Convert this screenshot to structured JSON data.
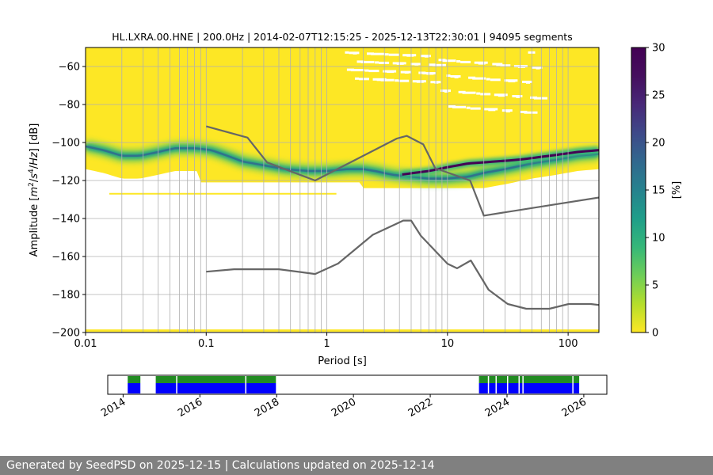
{
  "chart_data": [
    {
      "type": "heatmap",
      "title": "HL.LXRA.00.HNE | 200.0Hz | 2014-02-07T12:15:25 - 2025-12-13T22:30:01 | 94095 segments",
      "xlabel": "Period [s]",
      "ylabel_parts": [
        "Amplitude [",
        "m",
        "2",
        "/",
        "s",
        "4",
        "/",
        "Hz",
        "] [dB]"
      ],
      "x_scale": "log",
      "xlim": [
        0.01,
        180
      ],
      "ylim": [
        -200,
        -50
      ],
      "x_ticks": [
        {
          "value": 0.01,
          "label": "0.01"
        },
        {
          "value": 0.1,
          "label": "0.1"
        },
        {
          "value": 1,
          "label": "1"
        },
        {
          "value": 10,
          "label": "10"
        },
        {
          "value": 100,
          "label": "100"
        }
      ],
      "y_ticks": [
        {
          "value": -60,
          "label": "−60"
        },
        {
          "value": -80,
          "label": "−80"
        },
        {
          "value": -100,
          "label": "−100"
        },
        {
          "value": -120,
          "label": "−120"
        },
        {
          "value": -140,
          "label": "−140"
        },
        {
          "value": -160,
          "label": "−160"
        },
        {
          "value": -180,
          "label": "−180"
        },
        {
          "value": -200,
          "label": "−200"
        }
      ],
      "grid": true,
      "grid_periods": [
        0.02,
        0.03,
        0.04,
        0.05,
        0.06,
        0.07,
        0.08,
        0.09,
        0.2,
        0.3,
        0.4,
        0.5,
        0.6,
        0.7,
        0.8,
        0.9,
        2,
        3,
        4,
        5,
        6,
        7,
        8,
        9,
        20,
        30,
        40,
        50,
        60,
        70,
        80,
        90
      ],
      "ppsd_mode": [
        [
          0.01,
          -102
        ],
        [
          0.014,
          -104
        ],
        [
          0.02,
          -107
        ],
        [
          0.028,
          -107
        ],
        [
          0.04,
          -105
        ],
        [
          0.055,
          -103
        ],
        [
          0.08,
          -103
        ],
        [
          0.11,
          -104
        ],
        [
          0.15,
          -107
        ],
        [
          0.2,
          -110
        ],
        [
          0.3,
          -112
        ],
        [
          0.45,
          -114
        ],
        [
          0.7,
          -115
        ],
        [
          1.0,
          -115
        ],
        [
          1.5,
          -114
        ],
        [
          2.0,
          -114
        ],
        [
          2.5,
          -115
        ],
        [
          3.5,
          -117
        ],
        [
          5,
          -118
        ],
        [
          7,
          -119
        ],
        [
          10,
          -119
        ],
        [
          15,
          -118
        ],
        [
          20,
          -116
        ],
        [
          30,
          -114
        ],
        [
          50,
          -111
        ],
        [
          80,
          -109
        ],
        [
          120,
          -107
        ],
        [
          180,
          -106
        ]
      ],
      "secondary_band": [
        [
          4,
          -117
        ],
        [
          7,
          -115
        ],
        [
          10,
          -113
        ],
        [
          15,
          -111
        ],
        [
          25,
          -110
        ],
        [
          40,
          -109
        ],
        [
          70,
          -107
        ],
        [
          120,
          -105
        ],
        [
          180,
          -104
        ]
      ],
      "noise_models": [
        {
          "points": [
            [
              0.1,
              -91.5
            ],
            [
              0.22,
              -97.4
            ],
            [
              0.32,
              -110.5
            ],
            [
              0.8,
              -120
            ],
            [
              3.8,
              -97.9
            ],
            [
              4.6,
              -96.5
            ],
            [
              6.3,
              -101
            ],
            [
              7.9,
              -113.5
            ],
            [
              15.4,
              -120
            ],
            [
              20,
              -138.5
            ],
            [
              354.8,
              -126
            ]
          ]
        },
        {
          "points": [
            [
              0.1,
              -168
            ],
            [
              0.17,
              -166.7
            ],
            [
              0.4,
              -166.7
            ],
            [
              0.8,
              -169.2
            ],
            [
              1.24,
              -163.7
            ],
            [
              2.4,
              -148.6
            ],
            [
              4.3,
              -141.1
            ],
            [
              5,
              -141.1
            ],
            [
              6,
              -149
            ],
            [
              10,
              -163.8
            ],
            [
              12,
              -166.2
            ],
            [
              15.6,
              -162.1
            ],
            [
              21.9,
              -177.5
            ],
            [
              31.6,
              -185
            ],
            [
              45,
              -187.5
            ],
            [
              70,
              -187.5
            ],
            [
              101,
              -185
            ],
            [
              154,
              -185
            ],
            [
              328,
              -187.5
            ]
          ]
        }
      ],
      "colorbar": {
        "label": "[%]",
        "range": [
          0,
          30
        ],
        "ticks": [
          0,
          5,
          10,
          15,
          20,
          25,
          30
        ]
      }
    },
    {
      "type": "timeline",
      "x_ticks": [
        "2014",
        "2016",
        "2018",
        "2020",
        "2022",
        "2024",
        "2026"
      ],
      "xlim": [
        2013.6,
        2026.6
      ],
      "data_coverage_ranges": [
        [
          2014.12,
          2014.45
        ],
        [
          2014.85,
          2017.98
        ],
        [
          2023.27,
          2025.88
        ]
      ],
      "data_gaps": [
        2015.38,
        2017.18,
        2023.5,
        2023.7,
        2024.0,
        2024.3,
        2024.4,
        2025.7
      ],
      "colors": {
        "green": "#228b22",
        "blue": "#0000ff"
      }
    }
  ],
  "footer": {
    "text": "Generated by SeedPSD on 2025-12-15 | Calculations updated on 2025-12-14"
  }
}
